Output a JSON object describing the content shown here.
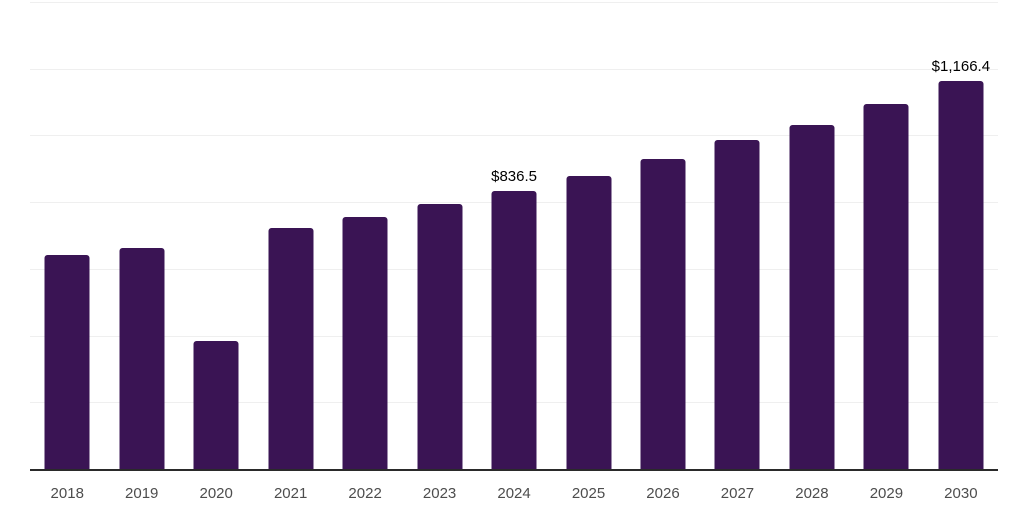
{
  "chart_data": {
    "type": "bar",
    "categories": [
      "2018",
      "2019",
      "2020",
      "2021",
      "2022",
      "2023",
      "2024",
      "2025",
      "2026",
      "2027",
      "2028",
      "2029",
      "2030"
    ],
    "values": [
      644,
      666,
      388,
      727,
      760,
      798,
      836.5,
      881,
      933,
      988,
      1034,
      1097,
      1166.4
    ],
    "bar_labels": [
      "",
      "",
      "",
      "",
      "",
      "",
      "$836.5",
      "",
      "",
      "",
      "",
      "",
      "$1,166.4"
    ],
    "title": "",
    "xlabel": "",
    "ylabel": "",
    "ylim": [
      0,
      1400
    ],
    "gridline_step": 200,
    "grid": true,
    "legend": false,
    "y_axis_labels_visible": false,
    "colors": {
      "bar": "#3A1454",
      "axis_line": "#2a2a2a",
      "gridline": "#efefef",
      "tick_label": "#4d4d4d",
      "data_label": "#000000",
      "background": "#ffffff"
    }
  }
}
